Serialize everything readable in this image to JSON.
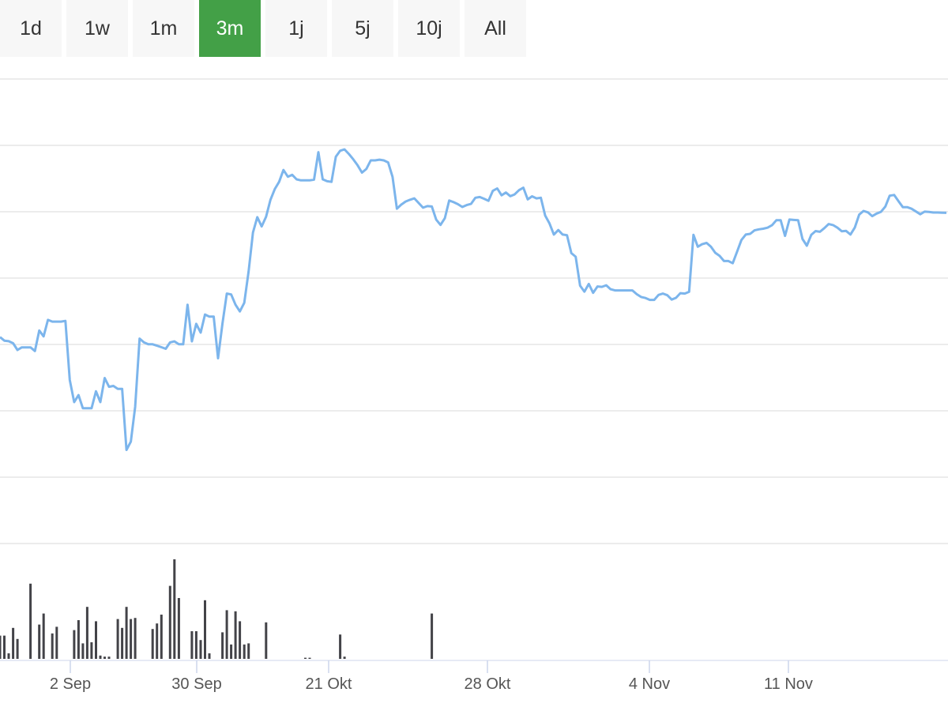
{
  "range_selector": {
    "buttons": [
      {
        "label": "1d",
        "active": false
      },
      {
        "label": "1w",
        "active": false
      },
      {
        "label": "1m",
        "active": false
      },
      {
        "label": "3m",
        "active": true
      },
      {
        "label": "1j",
        "active": false
      },
      {
        "label": "5j",
        "active": false
      },
      {
        "label": "10j",
        "active": false
      },
      {
        "label": "All",
        "active": false
      }
    ],
    "active_color": "#43a047"
  },
  "chart_data": {
    "type": "line",
    "series": [
      {
        "type": "line",
        "color": "#7cb5ec",
        "values": [
          5.0,
          4.79,
          4.76,
          4.64,
          4.25,
          4.4,
          4.4,
          4.4,
          4.19,
          5.38,
          5.04,
          6.0,
          5.9,
          5.9,
          5.9,
          5.94,
          2.51,
          1.22,
          1.63,
          0.86,
          0.86,
          0.86,
          1.85,
          1.22,
          2.62,
          2.11,
          2.16,
          1.99,
          1.99,
          -1.56,
          -1.08,
          0.95,
          4.91,
          4.69,
          4.58,
          4.58,
          4.5,
          4.41,
          4.32,
          4.69,
          4.75,
          4.58,
          4.58,
          6.88,
          4.75,
          5.77,
          5.26,
          6.31,
          6.19,
          6.19,
          3.77,
          5.79,
          7.53,
          7.48,
          6.88,
          6.49,
          6.99,
          8.82,
          11.08,
          11.97,
          11.43,
          11.99,
          12.97,
          13.6,
          14.02,
          14.71,
          14.32,
          14.43,
          14.17,
          14.11,
          14.11,
          14.11,
          14.15,
          15.75,
          14.17,
          14.06,
          14.02,
          15.48,
          15.83,
          15.91,
          15.64,
          15.33,
          14.98,
          14.56,
          14.77,
          15.27,
          15.27,
          15.31,
          15.27,
          15.15,
          14.31,
          12.46,
          12.7,
          12.88,
          12.98,
          13.06,
          12.79,
          12.52,
          12.61,
          12.59,
          11.83,
          11.52,
          11.91,
          12.94,
          12.84,
          12.72,
          12.56,
          12.67,
          12.74,
          13.1,
          13.14,
          13.04,
          12.92,
          13.5,
          13.64,
          13.24,
          13.4,
          13.19,
          13.29,
          13.54,
          13.68,
          13.0,
          13.18,
          13.06,
          13.1,
          12.06,
          11.6,
          10.96,
          11.22,
          10.96,
          10.92,
          9.88,
          9.67,
          7.99,
          7.64,
          8.09,
          7.57,
          7.94,
          7.92,
          8.01,
          7.78,
          7.71,
          7.71,
          7.71,
          7.71,
          7.71,
          7.49,
          7.33,
          7.27,
          7.16,
          7.16,
          7.45,
          7.53,
          7.43,
          7.18,
          7.28,
          7.55,
          7.53,
          7.63,
          10.94,
          10.25,
          10.4,
          10.47,
          10.25,
          9.9,
          9.72,
          9.42,
          9.42,
          9.29,
          9.96,
          10.64,
          10.96,
          11.0,
          11.2,
          11.26,
          11.3,
          11.36,
          11.5,
          11.79,
          11.79,
          10.88,
          11.83,
          11.81,
          11.79,
          10.7,
          10.31,
          10.94,
          11.16,
          11.12,
          11.33,
          11.57,
          11.51,
          11.36,
          11.15,
          11.17,
          10.96,
          11.37,
          12.12,
          12.33,
          12.25,
          12.03,
          12.18,
          12.28,
          12.59,
          13.22,
          13.26,
          12.9,
          12.55,
          12.55,
          12.46,
          12.3,
          12.14,
          12.29,
          12.27,
          12.24,
          12.24,
          12.23,
          12.22
        ]
      },
      {
        "type": "column",
        "color": "#434348",
        "values": [
          21,
          21,
          5,
          28,
          18,
          0,
          0,
          68,
          0,
          31,
          41,
          0,
          23,
          29,
          0,
          0,
          0,
          26,
          35,
          14,
          47,
          15,
          34,
          3,
          2,
          2,
          0,
          36,
          28,
          47,
          36,
          37,
          0,
          0,
          0,
          27,
          32,
          40,
          0,
          66,
          90,
          55,
          0,
          0,
          25,
          25,
          17,
          53,
          5,
          0,
          0,
          24,
          44,
          13,
          43,
          34,
          13,
          14,
          0,
          0,
          0,
          33,
          0,
          0,
          0,
          0,
          0,
          0,
          0,
          0,
          1,
          1,
          0,
          0,
          0,
          0,
          0,
          0,
          22,
          2,
          0,
          0,
          0,
          0,
          0,
          0,
          0,
          0,
          0,
          0,
          0,
          0,
          0,
          0,
          0,
          0,
          0,
          0,
          0,
          41,
          0,
          0,
          0,
          0,
          0,
          0,
          0,
          0,
          0,
          0,
          0,
          0,
          0,
          0,
          0,
          0,
          0,
          0,
          0,
          0,
          0,
          0,
          0,
          0,
          0,
          0,
          0,
          0,
          0,
          0,
          0,
          0,
          0,
          0,
          0,
          0,
          0,
          0,
          0,
          0,
          0,
          0,
          0,
          0,
          0,
          0,
          0,
          0,
          0,
          0,
          0,
          0,
          0,
          0,
          0,
          0,
          0,
          0,
          0,
          0,
          0,
          0,
          0,
          0,
          0,
          0,
          0,
          0,
          0,
          0,
          0,
          0,
          0,
          0,
          0,
          0,
          0,
          0,
          0,
          0,
          0,
          0,
          0,
          0,
          0,
          0,
          0,
          0,
          0,
          0,
          0,
          0,
          0,
          0,
          0,
          0,
          0,
          0,
          0,
          0,
          0,
          0,
          0,
          0,
          0,
          0,
          0,
          0,
          0,
          0,
          0,
          0,
          0,
          0,
          0,
          0,
          0,
          0
        ]
      }
    ],
    "x_ticks": [
      "2 Sep",
      "30 Sep",
      "21 Okt",
      "28 Okt",
      "4 Nov",
      "11 Nov"
    ],
    "grid": true,
    "legend": "none"
  }
}
